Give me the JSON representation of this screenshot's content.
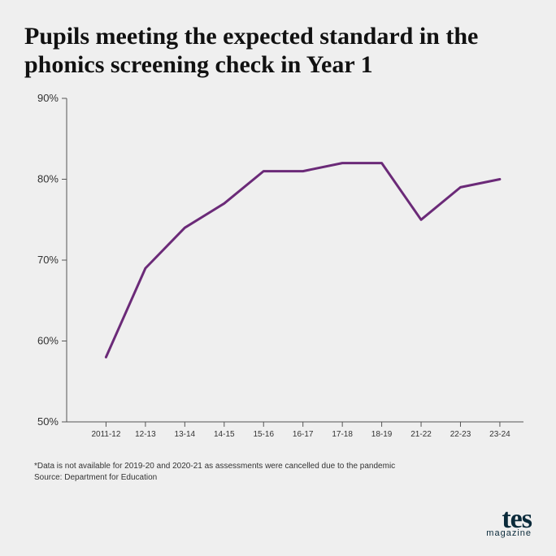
{
  "title": "Pupils meeting the expected standard in the phonics screening check in Year 1",
  "chart": {
    "type": "line",
    "background_color": "#efefef",
    "axis_color": "#555555",
    "tick_color": "#555555",
    "line_color": "#6b2a78",
    "line_width": 3,
    "ylim": [
      50,
      90
    ],
    "ytick_step": 10,
    "ytick_labels": [
      "50%",
      "60%",
      "70%",
      "80%",
      "90%"
    ],
    "ytick_fontsize": 13,
    "xtick_fontsize": 10,
    "tick_font": "Arial, Helvetica, sans-serif",
    "categories": [
      "2011-12",
      "12-13",
      "13-14",
      "14-15",
      "15-16",
      "16-17",
      "17-18",
      "18-19",
      "21-22",
      "22-23",
      "23-24"
    ],
    "values": [
      58,
      69,
      74,
      77,
      81,
      81,
      82,
      82,
      75,
      79,
      80
    ]
  },
  "footnote_line1": "*Data is not available for 2019-20 and 2020-21 as assessments were cancelled due to the pandemic",
  "footnote_line2": "Source: Department for Education",
  "logo": {
    "brand": "tes",
    "sub": "magazine",
    "color": "#0a2a3a"
  }
}
